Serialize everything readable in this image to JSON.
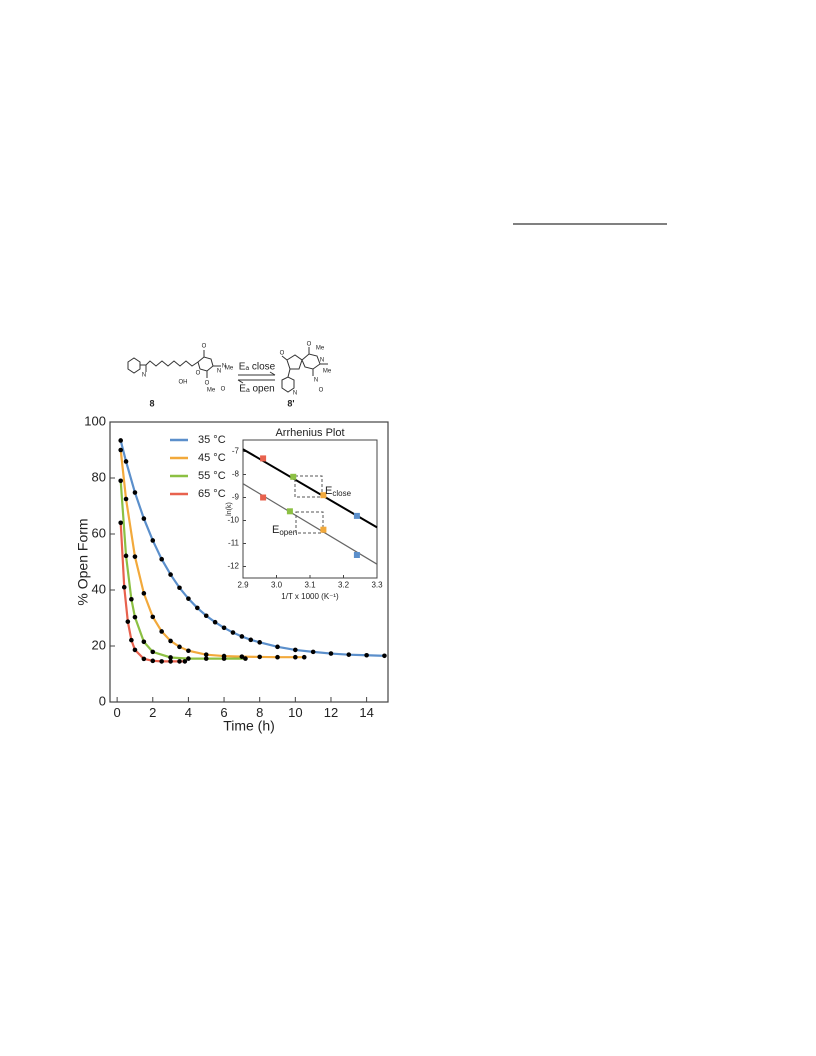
{
  "scheme": {
    "compound_left": "8",
    "compound_right": "8'",
    "arrow_top": "Eₐ close",
    "arrow_bottom": "Eₐ open",
    "atoms": [
      "N",
      "OH",
      "O",
      "O",
      "N",
      "N",
      "Me",
      "O",
      "Me",
      "O",
      "N",
      "O",
      "O",
      "N",
      "N",
      "Me",
      "Me",
      "O"
    ]
  },
  "chart_data": [
    {
      "type": "line",
      "xlabel": "Time (h)",
      "ylabel": "% Open Form",
      "xlim": [
        -0.4,
        15.2
      ],
      "ylim": [
        0,
        100
      ],
      "xticks": [
        0,
        2,
        4,
        6,
        8,
        10,
        12,
        14
      ],
      "yticks": [
        0,
        20,
        40,
        60,
        80,
        100
      ],
      "legend": "upper left",
      "marker_color": "#000000",
      "series": [
        {
          "name": "35 °C",
          "color": "#5b8fcb",
          "x": [
            0.2,
            0.5,
            1,
            1.5,
            2,
            2.5,
            3,
            3.5,
            4,
            4.5,
            5,
            5.5,
            6,
            6.5,
            7,
            7.5,
            8,
            9,
            10,
            11,
            12,
            13,
            14,
            15
          ],
          "values": [
            93.4,
            85.9,
            74.8,
            65.5,
            57.7,
            51.0,
            45.5,
            40.8,
            36.9,
            33.6,
            30.8,
            28.5,
            26.5,
            24.8,
            23.4,
            22.2,
            21.3,
            19.7,
            18.6,
            17.9,
            17.3,
            16.9,
            16.7,
            16.5
          ]
        },
        {
          "name": "45 °C",
          "color": "#f2a93b",
          "x": [
            0.2,
            0.5,
            1,
            1.5,
            2,
            2.5,
            3,
            3.5,
            4,
            5,
            6,
            7,
            8,
            9,
            10,
            10.5
          ],
          "values": [
            90,
            72.5,
            51.9,
            38.8,
            30.4,
            25.2,
            21.8,
            19.7,
            18.3,
            16.9,
            16.4,
            16.2,
            16.1,
            16.0,
            16.0,
            16.0
          ]
        },
        {
          "name": "55 °C",
          "color": "#8cc043",
          "x": [
            0.2,
            0.5,
            0.8,
            1,
            1.5,
            2,
            3,
            4,
            5,
            6,
            7.2
          ],
          "values": [
            79,
            52.2,
            36.7,
            30.3,
            21.5,
            17.9,
            15.9,
            15.5,
            15.5,
            15.5,
            15.5
          ]
        },
        {
          "name": "65 °C",
          "color": "#e8624e",
          "x": [
            0.2,
            0.4,
            0.6,
            0.8,
            1,
            1.5,
            2,
            2.5,
            3,
            3.5,
            3.8
          ],
          "values": [
            64,
            41.0,
            28.7,
            22.1,
            18.6,
            15.4,
            14.7,
            14.5,
            14.5,
            14.5,
            14.5
          ]
        }
      ]
    },
    {
      "type": "scatter",
      "title": "Arrhenius Plot",
      "ylabel": "ln(k)",
      "xlabel": "1/T x 1000 (K⁻¹)",
      "xlim": [
        2.9,
        3.3
      ],
      "ylim": [
        -12.5,
        -6.5
      ],
      "xticks": [
        2.9,
        {
          "value": 3,
          "label": "3.0"
        },
        3.1,
        3.2,
        3.3
      ],
      "yticks": [
        -7,
        -8,
        -9,
        -10,
        -11,
        -12
      ],
      "series": [
        {
          "x": [
            2.96,
            3.05,
            3.14,
            3.24
          ],
          "values": [
            -7.3,
            -8.1,
            -8.9,
            -9.8
          ],
          "colors": [
            "#e8624e",
            "#8cc043",
            "#f2a93b",
            "#5b8fcb"
          ]
        },
        {
          "x": [
            2.96,
            3.04,
            3.14,
            3.24
          ],
          "values": [
            -9.0,
            -9.6,
            -10.4,
            -11.5
          ],
          "colors": [
            "#e8624e",
            "#8cc043",
            "#f2a93b",
            "#5b8fcb"
          ]
        }
      ],
      "fits": [
        {
          "x": [
            2.9,
            3.3
          ],
          "values": [
            -6.9,
            -10.3
          ],
          "color": "#000000"
        },
        {
          "x": [
            2.9,
            3.3
          ],
          "values": [
            -8.4,
            -11.9
          ],
          "color": "#666666"
        }
      ],
      "annotations": [
        {
          "text": "E",
          "subscript": "close"
        },
        {
          "text": "E",
          "subscript": "open"
        }
      ]
    }
  ]
}
